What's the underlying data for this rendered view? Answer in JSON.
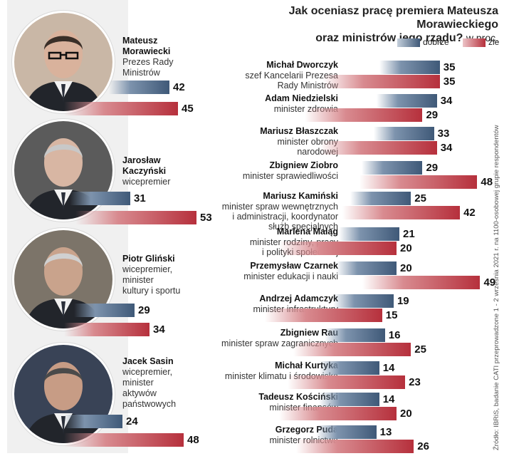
{
  "title_line1": "Jak oceniasz pracę premiera Mateusza Morawieckiego",
  "title_line2": "oraz ministrów jego rządu?",
  "title_unit": "w proc.",
  "legend": {
    "good": "dobrze",
    "bad": "źle"
  },
  "source": "Źródło: IBRiS, badanie CATI przeprowadzone 1 - 2 września 2021 r. na 1100-osobowej grupie respondentów",
  "colors": {
    "good": "#3f5978",
    "bad": "#b6303c"
  },
  "featured": [
    {
      "name": "Mateusz\nMorawiecki",
      "role": "Prezes Rady\nMinistrów",
      "good": 42,
      "bad": 45,
      "portrait": "man-portrait-icon"
    },
    {
      "name": "Jarosław\nKaczyński",
      "role": "wicepremier",
      "good": 31,
      "bad": 53,
      "portrait": "man-portrait-icon"
    },
    {
      "name": "Piotr Gliński",
      "role": "wicepremier,\nminister\nkultury i sportu",
      "good": 29,
      "bad": 34,
      "portrait": "man-portrait-icon"
    },
    {
      "name": "Jacek Sasin",
      "role": "wicepremier,\nminister\naktywów\npaństwowych",
      "good": 24,
      "bad": 48,
      "portrait": "man-portrait-icon"
    }
  ],
  "ministers": [
    {
      "name": "Michał Dworczyk",
      "role": "szef Kancelarii Prezesa\nRady Ministrów",
      "good": 35,
      "bad": 35
    },
    {
      "name": "Adam Niedzielski",
      "role": "minister zdrowia",
      "good": 34,
      "bad": 29
    },
    {
      "name": "Mariusz Błaszczak",
      "role": "minister obrony\nnarodowej",
      "good": 33,
      "bad": 34
    },
    {
      "name": "Zbigniew Ziobro",
      "role": "minister sprawiedliwości",
      "good": 29,
      "bad": 48
    },
    {
      "name": "Mariusz Kamiński",
      "role": "minister spraw wewnętrznych\ni administracji, koordynator\nsłużb specjalnych",
      "good": 25,
      "bad": 42
    },
    {
      "name": "Marlena Maląg",
      "role": "minister rodziny, pracy\ni polityki społecznej",
      "good": 21,
      "bad": 20
    },
    {
      "name": "Przemysław Czarnek",
      "role": "minister edukacji i nauki",
      "good": 20,
      "bad": 49
    },
    {
      "name": "Andrzej Adamczyk",
      "role": "minister infrastruktury",
      "good": 19,
      "bad": 15
    },
    {
      "name": "Zbigniew Rau",
      "role": "minister spraw zagranicznych",
      "good": 16,
      "bad": 25
    },
    {
      "name": "Michał Kurtyka",
      "role": "minister klimatu i środowiska",
      "good": 14,
      "bad": 23
    },
    {
      "name": "Tadeusz Kościński",
      "role": "minister finansów",
      "good": 14,
      "bad": 20
    },
    {
      "name": "Grzegorz Puda",
      "role": "minister rolnictwa",
      "good": 13,
      "bad": 26
    }
  ],
  "chart_data": {
    "type": "bar",
    "title": "Jak oceniasz pracę premiera Mateusza Morawieckiego oraz ministrów jego rządu? w proc.",
    "categories": [
      "Mateusz Morawiecki",
      "Jarosław Kaczyński",
      "Piotr Gliński",
      "Jacek Sasin",
      "Michał Dworczyk",
      "Adam Niedzielski",
      "Mariusz Błaszczak",
      "Zbigniew Ziobro",
      "Mariusz Kamiński",
      "Marlena Maląg",
      "Przemysław Czarnek",
      "Andrzej Adamczyk",
      "Zbigniew Rau",
      "Michał Kurtyka",
      "Tadeusz Kościński",
      "Grzegorz Puda"
    ],
    "series": [
      {
        "name": "dobrze",
        "values": [
          42,
          31,
          29,
          24,
          35,
          34,
          33,
          29,
          25,
          21,
          20,
          19,
          16,
          14,
          14,
          13
        ]
      },
      {
        "name": "źle",
        "values": [
          45,
          53,
          34,
          48,
          35,
          29,
          34,
          48,
          42,
          20,
          49,
          15,
          25,
          23,
          20,
          26
        ]
      }
    ],
    "orientation": "horizontal",
    "legend": "top-right",
    "grid": false
  }
}
